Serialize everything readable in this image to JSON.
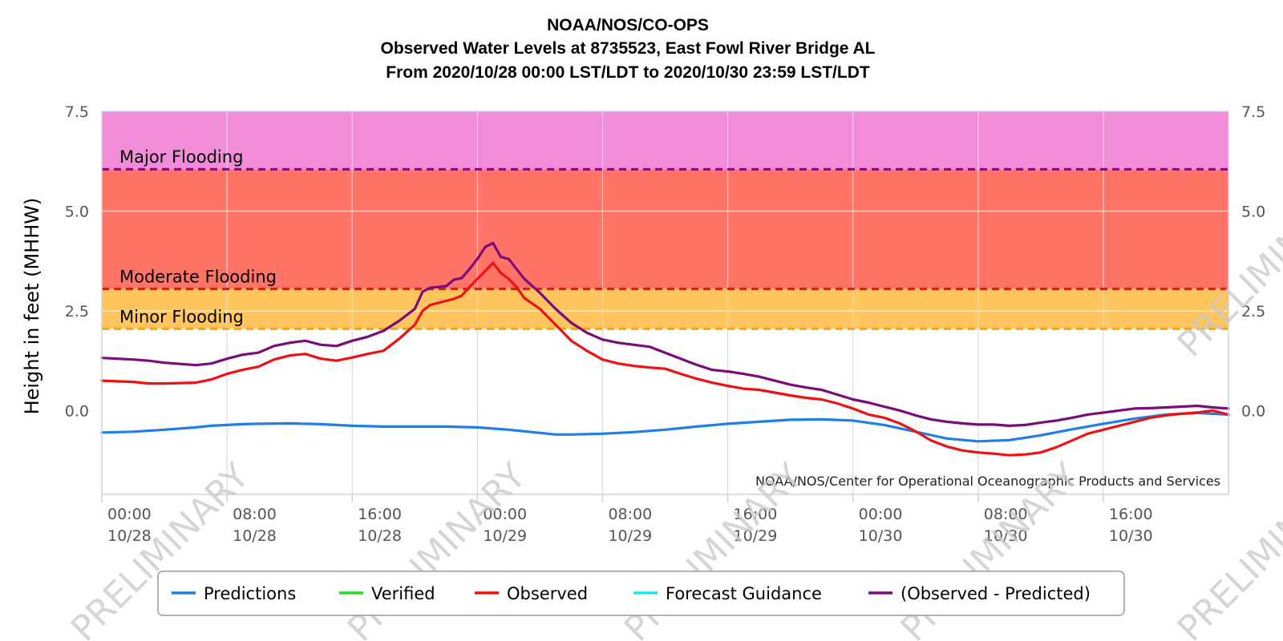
{
  "chart_data": {
    "type": "line",
    "title": [
      "NOAA/NOS/CO-OPS",
      "Observed Water Levels at 8735523, East Fowl River Bridge AL",
      "From 2020/10/28 00:00 LST/LDT to 2020/10/30 23:59 LST/LDT"
    ],
    "ylabel": "Height in feet (MHHW)",
    "ylim": [
      -2.1,
      7.5
    ],
    "xlim_hours": [
      0,
      72
    ],
    "y_ticks": [
      "0.0",
      "2.5",
      "5.0",
      "7.5"
    ],
    "y_tick_values": [
      0,
      2.5,
      5.0,
      7.5
    ],
    "x_ticks": [
      {
        "hour": 0,
        "time": "00:00",
        "date": "10/28"
      },
      {
        "hour": 8,
        "time": "08:00",
        "date": "10/28"
      },
      {
        "hour": 16,
        "time": "16:00",
        "date": "10/28"
      },
      {
        "hour": 24,
        "time": "00:00",
        "date": "10/29"
      },
      {
        "hour": 32,
        "time": "08:00",
        "date": "10/29"
      },
      {
        "hour": 40,
        "time": "16:00",
        "date": "10/29"
      },
      {
        "hour": 48,
        "time": "00:00",
        "date": "10/30"
      },
      {
        "hour": 56,
        "time": "08:00",
        "date": "10/30"
      },
      {
        "hour": 64,
        "time": "16:00",
        "date": "10/30"
      }
    ],
    "grid": true,
    "flood_levels": [
      {
        "name": "Major Flooding",
        "value": 6.05,
        "line_color": "#8b008b",
        "band_color": "#f08cd8"
      },
      {
        "name": "Moderate Flooding",
        "value": 3.05,
        "line_color": "#ee1111",
        "band_color": "#ff7466"
      },
      {
        "name": "Minor Flooding",
        "value": 2.05,
        "line_color": "#ffa500",
        "band_color": "#ffc55e"
      }
    ],
    "series": [
      {
        "name": "Predictions",
        "color": "#1f7fe6",
        "x": [
          0,
          2,
          4,
          6,
          7,
          8,
          9,
          10,
          12,
          14,
          16,
          18,
          20,
          22,
          24,
          26,
          28,
          29,
          30,
          32,
          34,
          36,
          38,
          40,
          42,
          44,
          46,
          48,
          50,
          52,
          54,
          56,
          58,
          60,
          62,
          64,
          66,
          68,
          70,
          72
        ],
        "y": [
          -0.55,
          -0.53,
          -0.48,
          -0.42,
          -0.38,
          -0.36,
          -0.34,
          -0.33,
          -0.32,
          -0.34,
          -0.38,
          -0.4,
          -0.4,
          -0.4,
          -0.42,
          -0.48,
          -0.56,
          -0.6,
          -0.6,
          -0.58,
          -0.54,
          -0.48,
          -0.4,
          -0.33,
          -0.28,
          -0.23,
          -0.22,
          -0.25,
          -0.36,
          -0.53,
          -0.7,
          -0.77,
          -0.74,
          -0.62,
          -0.47,
          -0.33,
          -0.2,
          -0.1,
          -0.06,
          -0.1
        ]
      },
      {
        "name": "Verified",
        "color": "#22dd22",
        "x": [],
        "y": []
      },
      {
        "name": "Observed",
        "color": "#ee1111",
        "x": [
          0,
          2,
          3,
          4,
          6,
          7,
          8,
          9,
          10,
          11,
          12,
          13,
          14,
          15,
          16,
          17,
          18,
          19,
          20,
          20.5,
          21,
          22,
          22.5,
          23,
          23.5,
          24,
          24.5,
          25,
          25.5,
          26,
          26.5,
          27,
          28,
          29,
          30,
          31,
          32,
          33,
          34,
          35,
          36,
          37,
          38,
          39,
          40,
          41,
          42,
          43,
          44,
          45,
          46,
          47,
          48,
          49,
          50,
          51,
          52,
          53,
          54,
          55,
          56,
          57,
          58,
          59,
          60,
          61,
          62,
          63,
          64,
          65,
          66,
          67,
          68,
          69,
          70,
          71,
          72
        ],
        "y": [
          0.75,
          0.72,
          0.68,
          0.68,
          0.7,
          0.78,
          0.92,
          1.02,
          1.1,
          1.28,
          1.38,
          1.42,
          1.3,
          1.25,
          1.33,
          1.42,
          1.5,
          1.8,
          2.15,
          2.5,
          2.65,
          2.75,
          2.8,
          2.88,
          3.1,
          3.3,
          3.5,
          3.7,
          3.45,
          3.3,
          3.1,
          2.82,
          2.55,
          2.15,
          1.75,
          1.5,
          1.28,
          1.18,
          1.12,
          1.08,
          1.05,
          0.92,
          0.8,
          0.7,
          0.62,
          0.55,
          0.52,
          0.45,
          0.38,
          0.32,
          0.28,
          0.18,
          0.05,
          -0.1,
          -0.18,
          -0.32,
          -0.52,
          -0.75,
          -0.9,
          -1.0,
          -1.05,
          -1.08,
          -1.12,
          -1.1,
          -1.05,
          -0.92,
          -0.75,
          -0.58,
          -0.48,
          -0.38,
          -0.28,
          -0.18,
          -0.12,
          -0.08,
          -0.05,
          0.0,
          -0.1
        ]
      },
      {
        "name": "Forecast Guidance",
        "color": "#22e5ee",
        "x": [],
        "y": []
      },
      {
        "name": "(Observed - Predicted)",
        "color": "#7b0b7b",
        "x": [
          0,
          2,
          3,
          4,
          6,
          7,
          8,
          9,
          10,
          11,
          12,
          13,
          14,
          15,
          16,
          17,
          18,
          19,
          20,
          20.5,
          21,
          22,
          22.5,
          23,
          23.5,
          24,
          24.5,
          25,
          25.5,
          26,
          26.5,
          27,
          28,
          29,
          30,
          31,
          32,
          33,
          34,
          35,
          36,
          37,
          38,
          39,
          40,
          41,
          42,
          43,
          44,
          45,
          46,
          47,
          48,
          49,
          50,
          51,
          52,
          53,
          54,
          55,
          56,
          57,
          58,
          59,
          60,
          61,
          62,
          63,
          64,
          65,
          66,
          67,
          68,
          69,
          70,
          71,
          72
        ],
        "y": [
          1.32,
          1.28,
          1.25,
          1.2,
          1.14,
          1.18,
          1.3,
          1.4,
          1.45,
          1.62,
          1.7,
          1.75,
          1.65,
          1.62,
          1.75,
          1.85,
          2.0,
          2.25,
          2.55,
          2.98,
          3.08,
          3.12,
          3.28,
          3.32,
          3.55,
          3.8,
          4.1,
          4.2,
          3.85,
          3.8,
          3.55,
          3.3,
          2.95,
          2.55,
          2.2,
          1.95,
          1.78,
          1.7,
          1.65,
          1.6,
          1.45,
          1.3,
          1.15,
          1.02,
          0.98,
          0.92,
          0.85,
          0.75,
          0.65,
          0.58,
          0.52,
          0.4,
          0.28,
          0.2,
          0.1,
          0.0,
          -0.12,
          -0.22,
          -0.28,
          -0.32,
          -0.35,
          -0.35,
          -0.38,
          -0.36,
          -0.3,
          -0.25,
          -0.18,
          -0.1,
          -0.05,
          0.0,
          0.05,
          0.06,
          0.08,
          0.1,
          0.12,
          0.08,
          0.05
        ]
      }
    ],
    "legend": {
      "position": "bottom",
      "items": [
        "Predictions",
        "Verified",
        "Observed",
        "Forecast Guidance",
        "(Observed - Predicted)"
      ]
    },
    "credit": "NOAA/NOS/Center for Operational Oceanographic Products and Services",
    "watermark": "PRELIMINARY"
  }
}
